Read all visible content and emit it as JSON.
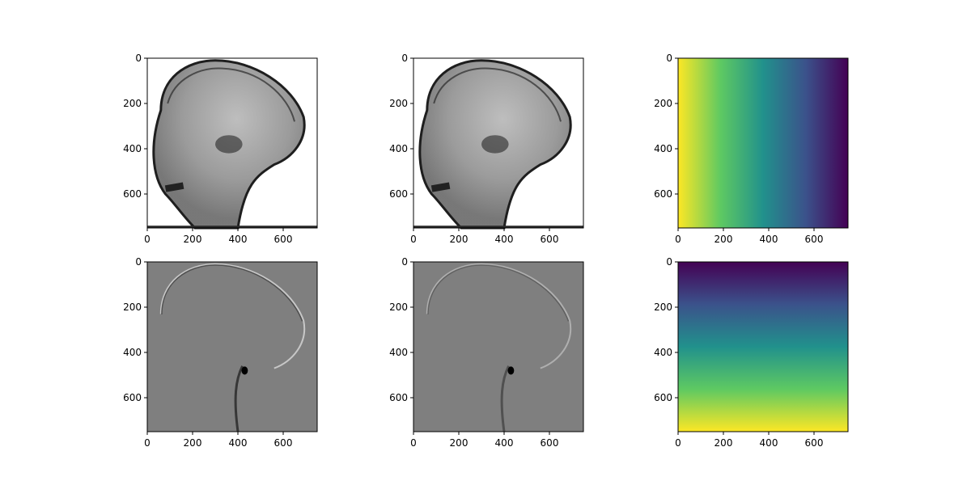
{
  "chart_data": [
    {
      "type": "heatmap",
      "content": "grayscale lateral head radiograph",
      "colormap": "gray",
      "x_ticks": [
        "0",
        "200",
        "400",
        "600"
      ],
      "y_ticks": [
        "0",
        "200",
        "400",
        "600"
      ],
      "xlim": [
        0,
        750
      ],
      "ylim": [
        750,
        0
      ]
    },
    {
      "type": "heatmap",
      "content": "grayscale lateral head radiograph",
      "colormap": "gray",
      "x_ticks": [
        "0",
        "200",
        "400",
        "600"
      ],
      "y_ticks": [
        "0",
        "200",
        "400",
        "600"
      ],
      "xlim": [
        0,
        750
      ],
      "ylim": [
        750,
        0
      ]
    },
    {
      "type": "heatmap",
      "content": "horizontal gradient, values decreasing left to right",
      "colormap": "viridis",
      "x_ticks": [
        "0",
        "200",
        "400",
        "600"
      ],
      "y_ticks": [
        "0",
        "200",
        "400",
        "600"
      ],
      "xlim": [
        0,
        750
      ],
      "ylim": [
        750,
        0
      ]
    },
    {
      "type": "heatmap",
      "content": "grayscale edge-filtered radiograph (horizontal derivative)",
      "colormap": "gray",
      "x_ticks": [
        "0",
        "200",
        "400",
        "600"
      ],
      "y_ticks": [
        "0",
        "200",
        "400",
        "600"
      ],
      "xlim": [
        0,
        750
      ],
      "ylim": [
        750,
        0
      ]
    },
    {
      "type": "heatmap",
      "content": "grayscale edge-filtered radiograph (horizontal derivative)",
      "colormap": "gray",
      "x_ticks": [
        "0",
        "200",
        "400",
        "600"
      ],
      "y_ticks": [
        "0",
        "200",
        "400",
        "600"
      ],
      "xlim": [
        0,
        750
      ],
      "ylim": [
        750,
        0
      ]
    },
    {
      "type": "heatmap",
      "content": "vertical gradient, values increasing top to bottom",
      "colormap": "viridis",
      "x_ticks": [
        "0",
        "200",
        "400",
        "600"
      ],
      "y_ticks": [
        "0",
        "200",
        "400",
        "600"
      ],
      "xlim": [
        0,
        750
      ],
      "ylim": [
        750,
        0
      ]
    }
  ]
}
